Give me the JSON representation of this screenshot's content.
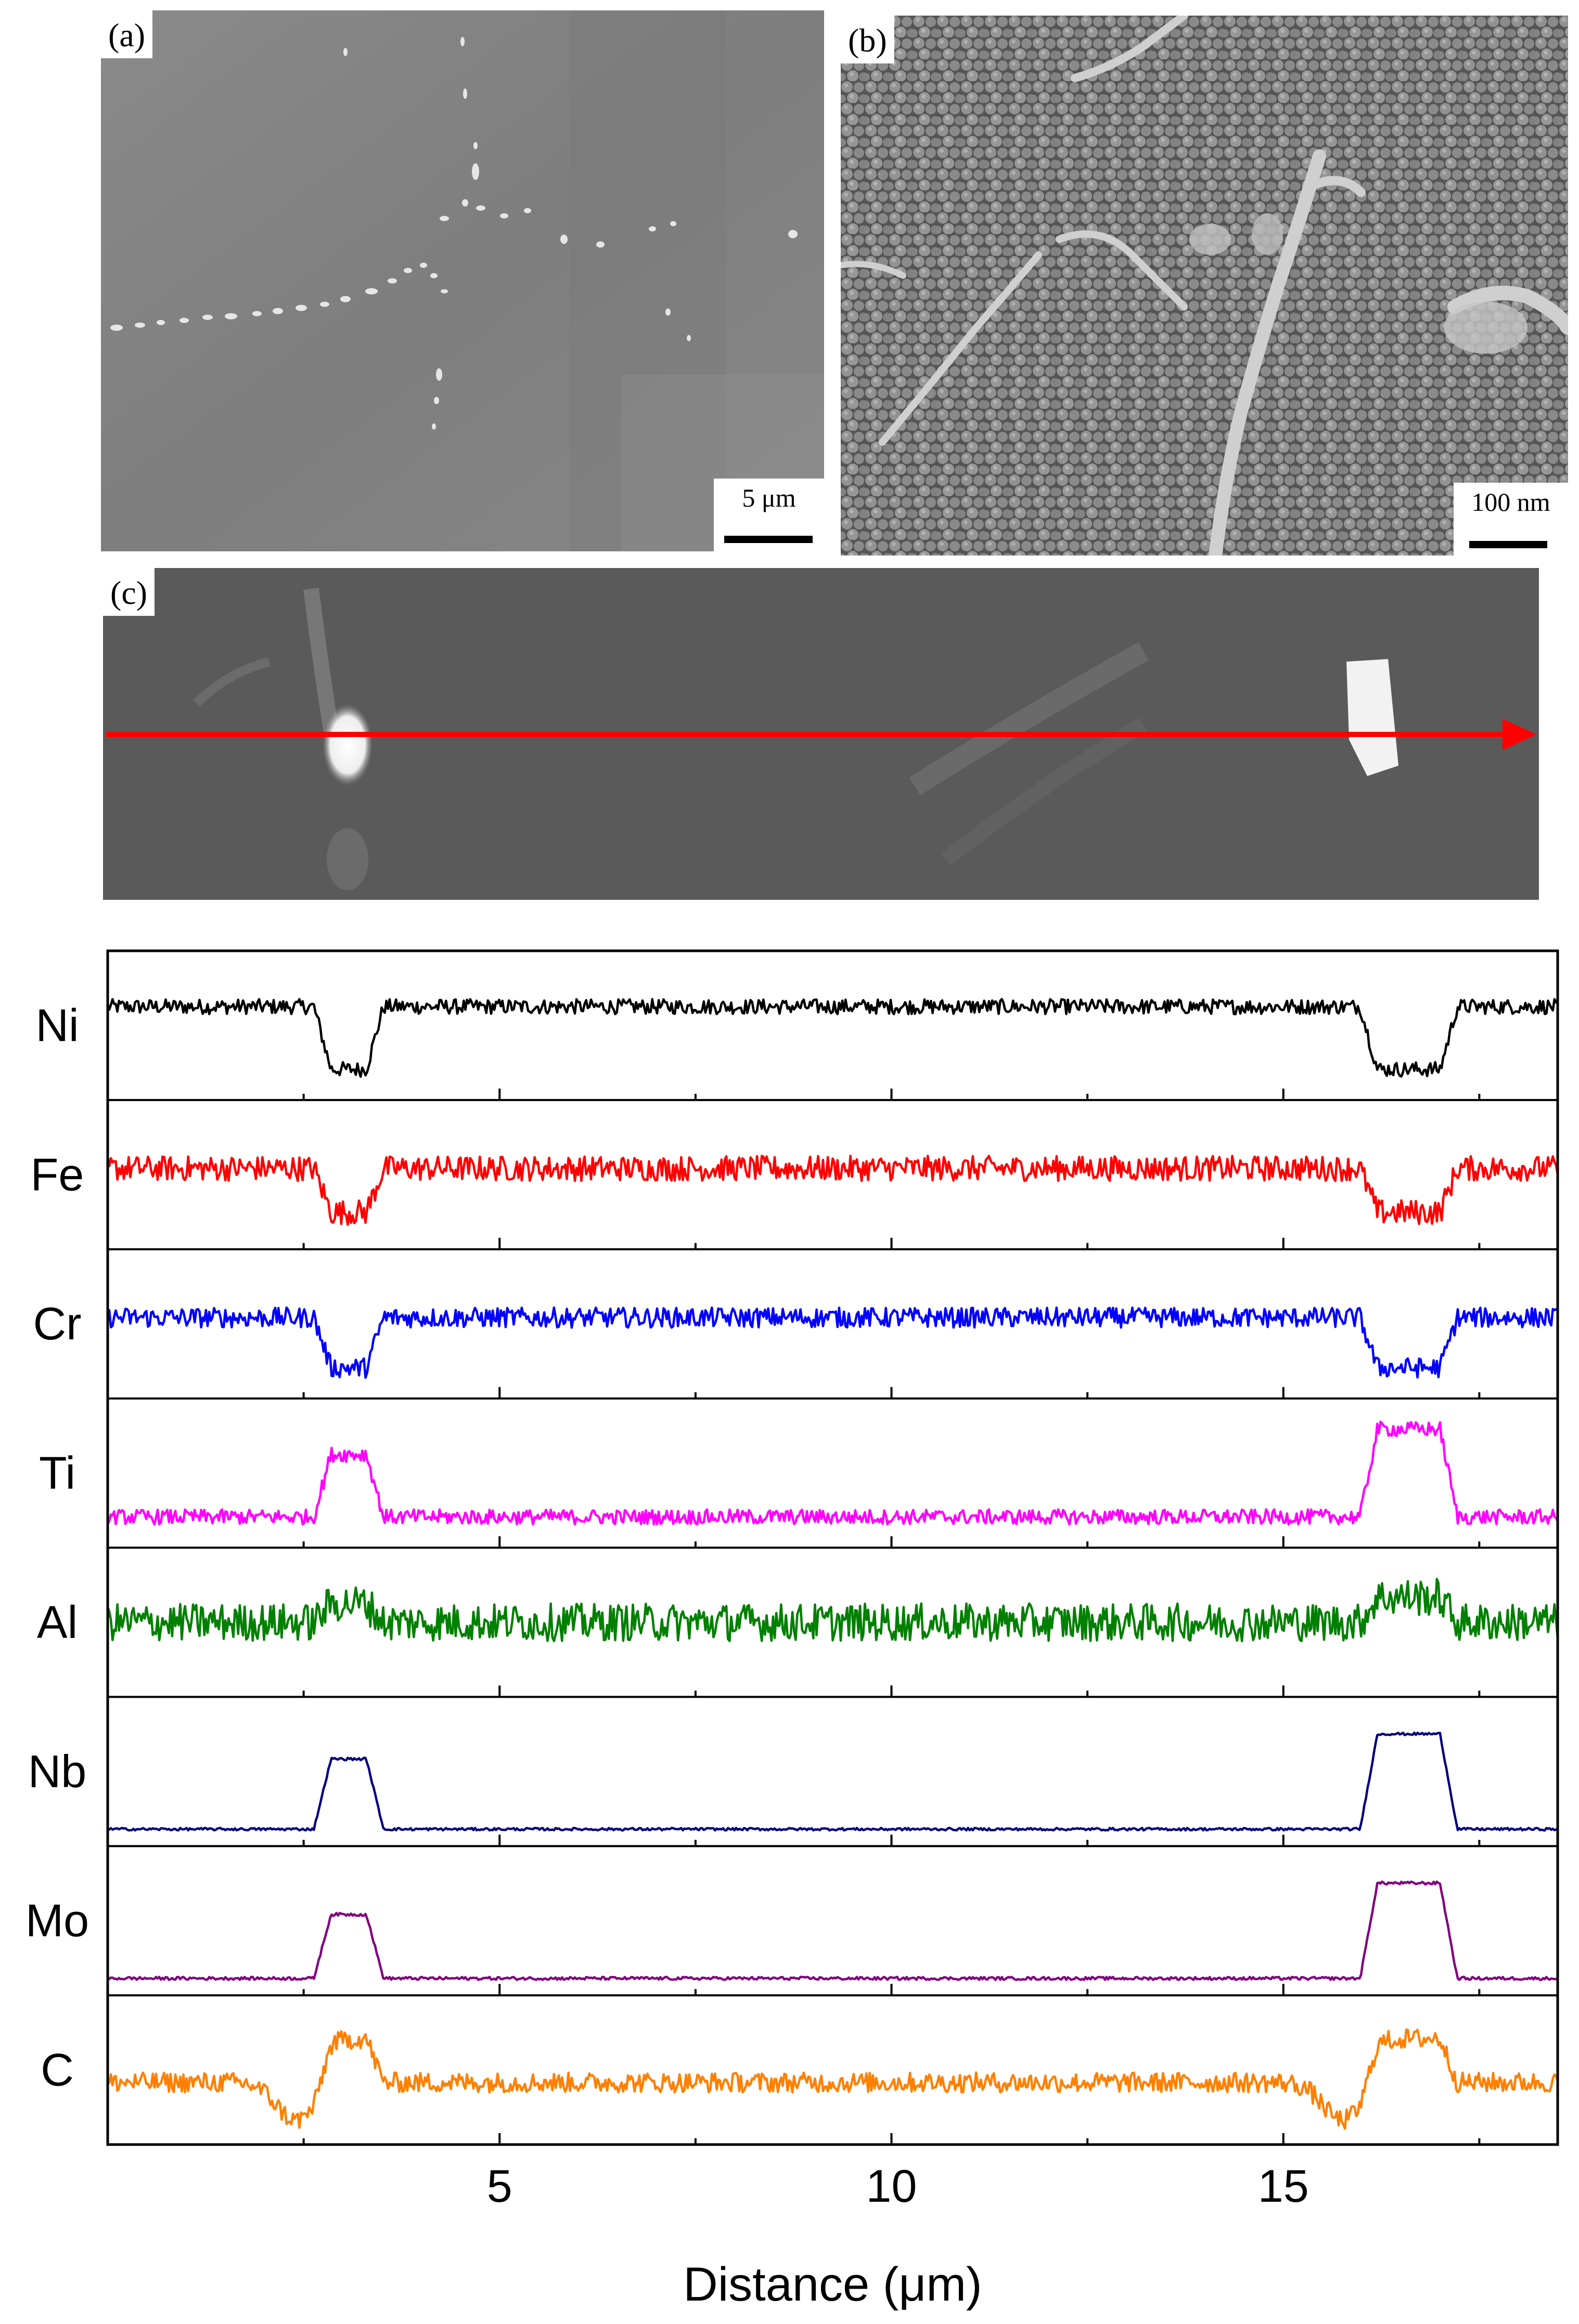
{
  "panels": {
    "a": {
      "label": "(a)",
      "scale_bar": "5 μm"
    },
    "b": {
      "label": "(b)",
      "scale_bar": "100 nm"
    },
    "c": {
      "label": "(c)"
    }
  },
  "colors": {
    "line_arrow": "#ff0000",
    "Ni": "#000000",
    "Fe": "#ff0000",
    "Cr": "#0000ff",
    "Ti": "#ff00ff",
    "Al": "#008000",
    "Nb": "#000080",
    "Mo": "#800080",
    "C": "#ff8000"
  },
  "chart_data": {
    "type": "line",
    "xlabel": "Distance (μm)",
    "xlim": [
      0,
      18.5
    ],
    "xticks": [
      5,
      10,
      15
    ],
    "xtick_labels": [
      "5",
      "10",
      "15"
    ],
    "minor_xticks": [
      2.5,
      7.5,
      12.5,
      17.5
    ],
    "ylabel": "",
    "stacked_rows": true,
    "series": [
      {
        "name": "Ni",
        "color": "#000000",
        "baseline": 0.65,
        "dips_to": 0.15,
        "particle_intervals": [
          [
            2.85,
            3.3
          ],
          [
            16.2,
            17.0
          ]
        ],
        "noise": 0.06
      },
      {
        "name": "Fe",
        "color": "#ff0000",
        "baseline": 0.55,
        "dips_to": 0.2,
        "particle_intervals": [
          [
            2.85,
            3.3
          ],
          [
            16.2,
            17.0
          ]
        ],
        "noise": 0.1
      },
      {
        "name": "Cr",
        "color": "#0000ff",
        "baseline": 0.55,
        "dips_to": 0.15,
        "particle_intervals": [
          [
            2.85,
            3.3
          ],
          [
            16.2,
            17.0
          ]
        ],
        "noise": 0.08
      },
      {
        "name": "Ti",
        "color": "#ff00ff",
        "baseline": 0.15,
        "peaks_to": [
          0.65,
          0.85
        ],
        "particle_intervals": [
          [
            2.85,
            3.3
          ],
          [
            16.2,
            17.0
          ]
        ],
        "noise": 0.06
      },
      {
        "name": "Al",
        "color": "#008000",
        "baseline": 0.5,
        "peaks_to": [
          0.65,
          0.7
        ],
        "particle_intervals": [
          [
            2.85,
            3.3
          ],
          [
            16.2,
            17.0
          ]
        ],
        "noise": 0.15
      },
      {
        "name": "Nb",
        "color": "#000080",
        "baseline": 0.04,
        "peaks_to": [
          0.6,
          0.8
        ],
        "particle_intervals": [
          [
            2.85,
            3.3
          ],
          [
            16.2,
            17.0
          ]
        ],
        "noise": 0.01
      },
      {
        "name": "Mo",
        "color": "#800080",
        "baseline": 0.04,
        "peaks_to": [
          0.55,
          0.8
        ],
        "particle_intervals": [
          [
            2.85,
            3.3
          ],
          [
            16.2,
            17.0
          ]
        ],
        "noise": 0.012
      },
      {
        "name": "C",
        "color": "#ff8000",
        "baseline": 0.4,
        "peaks_to": [
          0.75,
          0.75
        ],
        "dips_before_to": 0.1,
        "particle_intervals": [
          [
            2.85,
            3.3
          ],
          [
            16.2,
            17.0
          ]
        ],
        "noise": 0.08
      }
    ]
  }
}
